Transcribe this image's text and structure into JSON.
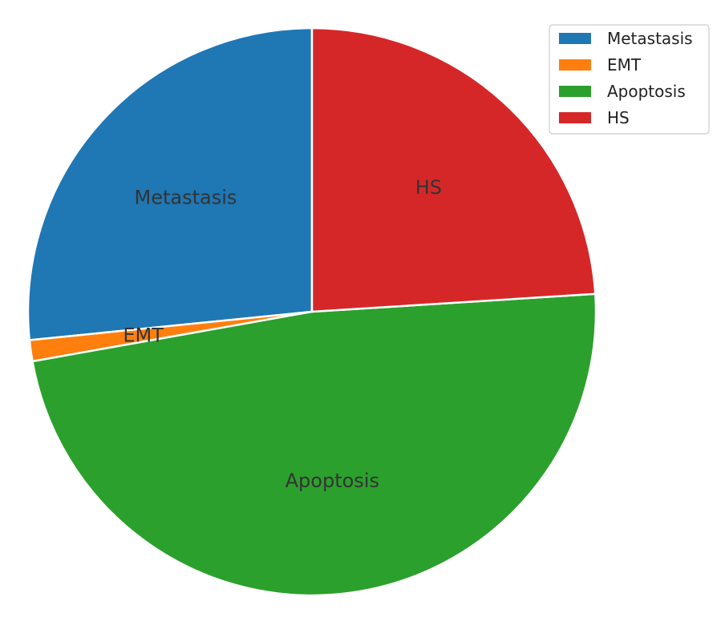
{
  "chart_data": {
    "type": "pie",
    "title": "",
    "categories": [
      "Metastasis",
      "EMT",
      "Apoptosis",
      "HS"
    ],
    "values": [
      26.6,
      1.2,
      48.2,
      24.0
    ],
    "colors": [
      "#1f77b4",
      "#ff7f0e",
      "#2ca02c",
      "#d62728"
    ],
    "start_angle_deg": 90,
    "direction": "counterclockwise",
    "slice_labels": [
      "Metastasis",
      "EMT",
      "Apoptosis",
      "HS"
    ],
    "legend": {
      "placement": "top-right",
      "entries": [
        "Metastasis",
        "EMT",
        "Apoptosis",
        "HS"
      ]
    }
  }
}
